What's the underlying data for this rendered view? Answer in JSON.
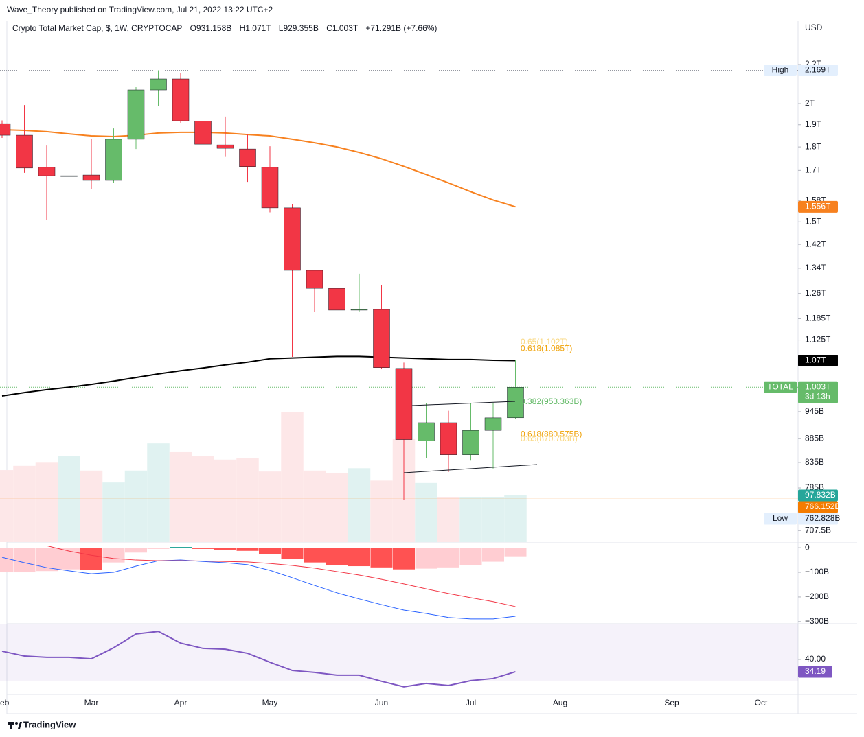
{
  "header": "Wave_Theory published on TradingView.com, Jul 21, 2022 13:22 UTC+2",
  "brand": "TradingView",
  "chart_data": {
    "type": "candlestick",
    "title": "Crypto Total Market Cap, $, 1W, CRYPTOCAP",
    "legend_values": [
      "O931.158B",
      "H1.071T",
      "L929.355B",
      "C1.003T",
      "+71.291B (+7.66%)"
    ],
    "currency": "USD",
    "categories": [
      "Feb",
      null,
      null,
      null,
      "Mar",
      null,
      null,
      null,
      "Apr",
      null,
      null,
      null,
      "May",
      null,
      null,
      null,
      null,
      "Jun",
      null,
      null,
      null,
      "Jul",
      null,
      null,
      null,
      "Aug",
      null,
      null,
      null,
      null,
      "Sep",
      null,
      null,
      null,
      "Oct",
      null
    ],
    "open": [
      1905,
      1852,
      1713,
      1676,
      1681,
      1659,
      1834,
      2068,
      2124,
      1916,
      1809,
      1791,
      1713,
      1552,
      1333,
      1276,
      1210,
      1212,
      1050,
      880,
      920,
      851,
      903,
      931.158,
      null,
      null,
      null,
      null,
      null,
      null,
      null,
      null,
      null,
      null,
      null,
      null
    ],
    "high": [
      1920,
      1993,
      1806,
      1950,
      1834,
      1883,
      2082,
      2169,
      2156,
      1938,
      1938,
      1855,
      1803,
      1567,
      1335,
      1307,
      1322,
      1285,
      1065,
      964,
      947,
      964,
      964,
      1071,
      null,
      null,
      null,
      null,
      null,
      null,
      null,
      null,
      null,
      null,
      null,
      null
    ],
    "low": [
      1840,
      1690,
      1508,
      1663,
      1626,
      1650,
      1791,
      1990,
      1909,
      1782,
      1757,
      1653,
      1535,
      1080,
      1204,
      1145,
      1204,
      1048,
      762.828,
      844,
      816,
      839,
      823,
      929.355,
      null,
      null,
      null,
      null,
      null,
      null,
      null,
      null,
      null,
      null,
      null,
      null
    ],
    "close": [
      1852,
      1710,
      1678,
      1678,
      1659,
      1834,
      2068,
      2124,
      1918,
      1812,
      1794,
      1716,
      1552,
      1333,
      1276,
      1210,
      1212,
      1052,
      883,
      920,
      851,
      903,
      931,
      1003,
      null,
      null,
      null,
      null,
      null,
      null,
      null,
      null,
      null,
      null,
      null,
      null
    ],
    "up_color": "#66bb6a",
    "down_color": "#f23645",
    "log_scale": true,
    "ylim": [
      688,
      2448
    ],
    "yticks": [
      {
        "value": 2200,
        "label": "2.2T"
      },
      {
        "value": 2000,
        "label": "2T"
      },
      {
        "value": 1900,
        "label": "1.9T"
      },
      {
        "value": 1800,
        "label": "1.8T"
      },
      {
        "value": 1700,
        "label": "1.7T"
      },
      {
        "value": 1580,
        "label": "1.58T"
      },
      {
        "value": 1500,
        "label": "1.5T"
      },
      {
        "value": 1420,
        "label": "1.42T"
      },
      {
        "value": 1340,
        "label": "1.34T"
      },
      {
        "value": 1260,
        "label": "1.26T"
      },
      {
        "value": 1185,
        "label": "1.185T"
      },
      {
        "value": 1125,
        "label": "1.125T"
      },
      {
        "value": 945,
        "label": "945B"
      },
      {
        "value": 885,
        "label": "885B"
      },
      {
        "value": 835,
        "label": "835B"
      },
      {
        "value": 785,
        "label": "785B"
      },
      {
        "value": 707.5,
        "label": "707.5B"
      }
    ],
    "series": [
      {
        "color": "#f7811f",
        "values": [
          1877,
          1874,
          1868,
          1858,
          1849,
          1846,
          1852,
          1862,
          1865,
          1865,
          1862,
          1855,
          1849,
          1834,
          1818,
          1800,
          1776,
          1749,
          1717,
          1683,
          1649,
          1614,
          1582,
          1556,
          null,
          null,
          null,
          null,
          null,
          null,
          null,
          null,
          null,
          null,
          null,
          null
        ]
      },
      {
        "color": "#000000",
        "values": [
          982,
          990,
          997,
          1003,
          1010,
          1018,
          1027,
          1036,
          1044,
          1051,
          1059,
          1066,
          1075,
          1077,
          1079,
          1081,
          1081,
          1079,
          1077,
          1075,
          1073,
          1073,
          1071,
          1070,
          null,
          null,
          null,
          null,
          null,
          null,
          null,
          null,
          null,
          null,
          null,
          null
        ]
      }
    ],
    "fib_levels": [
      {
        "label": "0.65(1.102T)",
        "value": 1102,
        "color": "#f9d77e"
      },
      {
        "label": "0.618(1.085T)",
        "value": 1085,
        "color": "#f0a30a"
      },
      {
        "label": "0.382(953.363B)",
        "value": 953.363,
        "color": "#66bb6a"
      },
      {
        "label": "0.618(880.575B)",
        "value": 880.575,
        "color": "#f0a30a"
      },
      {
        "label": "0.65(870.703B)",
        "value": 870.703,
        "color": "#f9d77e"
      }
    ],
    "price_tags": [
      {
        "title": "High",
        "value": 2169,
        "label": "2.169T",
        "color": "#e3effd",
        "text_color": "#131722",
        "line": "#9598a1"
      },
      {
        "value": 1556,
        "label": "1.556T",
        "color": "#f7811f"
      },
      {
        "value": 1070,
        "label": "1.07T",
        "color": "#000000"
      },
      {
        "title": "TOTAL",
        "value": 1003,
        "label": "1.003T",
        "countdown": "3d 13h",
        "color": "#66bb6a",
        "line": "#66bb6a"
      },
      {
        "value": 766.152,
        "label": "766.152B",
        "color": "#f57c00",
        "line": "#f57c00",
        "solid": true
      },
      {
        "title": "Low",
        "value": 762.828,
        "label": "762.828B",
        "color": "#e3effd",
        "text_color": "#131722"
      }
    ],
    "volume": {
      "values": [
        151,
        160,
        168,
        180,
        150,
        125,
        150,
        207,
        190,
        181,
        173,
        177,
        148,
        273,
        150,
        144,
        155,
        129,
        216,
        124,
        95,
        95,
        95,
        97.832,
        null,
        null,
        null,
        null,
        null,
        null,
        null,
        null,
        null,
        null,
        null,
        null
      ],
      "ylim": [
        0,
        331
      ],
      "tag": {
        "value": 97.832,
        "label": "97.832B",
        "color": "#26a69a"
      },
      "up_color": "#e0f2f1",
      "down_color": "#fde7e8"
    },
    "macd": {
      "histogram": [
        -100,
        -100,
        -95,
        -88,
        -90,
        -60,
        -20,
        -5,
        3,
        -5,
        -8,
        -13,
        -25,
        -45,
        -60,
        -72,
        -75,
        -80,
        -88,
        -85,
        -80,
        -72,
        -57,
        -35,
        null,
        null,
        null,
        null,
        null,
        null,
        null,
        null,
        null,
        null,
        null,
        null
      ],
      "macd": [
        -39,
        -61,
        -81,
        -94,
        -106,
        -100,
        -75,
        -53,
        -50,
        -56,
        -61,
        -69,
        -92,
        -122,
        -153,
        -183,
        -208,
        -231,
        -253,
        -267,
        -283,
        -289,
        -289,
        -278,
        null,
        null,
        null,
        null,
        null,
        null,
        null,
        null,
        null,
        null,
        null,
        null
      ],
      "signal": [
        null,
        null,
        8,
        -14,
        -31,
        -44,
        -50,
        -53,
        -53,
        -54,
        -56,
        -58,
        -64,
        -72,
        -83,
        -97,
        -111,
        -128,
        -147,
        -167,
        -186,
        -203,
        -219,
        -239,
        null,
        null,
        null,
        null,
        null,
        null,
        null,
        null,
        null,
        null,
        null,
        null
      ],
      "macd_color": "#2962ff",
      "signal_color": "#f23645",
      "hist_colors": {
        "pos_up": "#26a69a",
        "pos_down": "#b2dfdb",
        "neg_down": "#ff5252",
        "neg_up": "#ffcdd2"
      },
      "ylim": [
        -306,
        17
      ],
      "yticks": [
        0,
        {
          "value": -100,
          "label": "−100B"
        },
        {
          "value": -200,
          "label": "−200B"
        },
        {
          "value": -300,
          "label": "−300B"
        }
      ]
    },
    "rsi": {
      "values": [
        43.9,
        41.6,
        41.0,
        41.0,
        40.3,
        45.5,
        52.0,
        53.2,
        47.7,
        45.2,
        44.8,
        42.9,
        38.7,
        34.8,
        33.9,
        32.6,
        32.6,
        29.7,
        27.1,
        28.7,
        27.7,
        30.0,
        31.0,
        34.19,
        null,
        null,
        null,
        null,
        null,
        null,
        null,
        null,
        null,
        null,
        null,
        null
      ],
      "color": "#7e57c2",
      "band": [
        30,
        70
      ],
      "ylim": [
        23.5,
        56.5
      ],
      "yticks": [
        {
          "value": 40,
          "label": "40.00"
        }
      ],
      "tag": 34.19
    }
  }
}
